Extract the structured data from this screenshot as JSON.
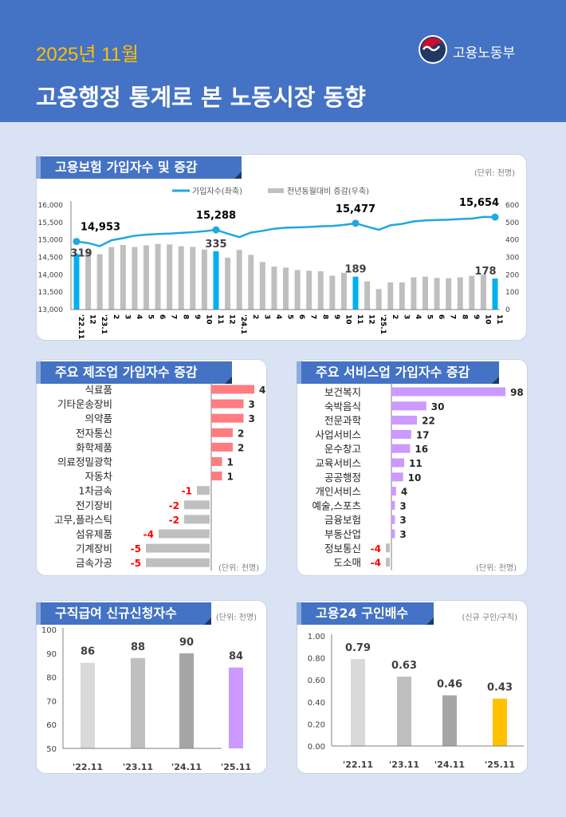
{
  "header": {
    "period": "2025년 11월",
    "title": "고용행정 통계로 본 노동시장 동향",
    "ministry": "고용노동부"
  },
  "colors": {
    "header": "#4472C4",
    "background": "#DAE3F3",
    "line": "#1FA8E0",
    "highlight_bar": "#00B0F0",
    "gray_bar": "#BFBFBF",
    "mfg_positive": "#FF7C80",
    "negative_label": "#FF0000",
    "service_positive": "#CC99FF",
    "claims_latest": "#CC99FF",
    "ratio_latest": "#FFC000"
  },
  "chart_data": [
    {
      "id": "insured",
      "type": "bar+line",
      "title": "고용보험 가입자수 및 증감",
      "unit": "(단위: 천명)",
      "legend": [
        "가입자수(좌축)",
        "전년동월대비 증감(우축)"
      ],
      "legend_position": "top",
      "categories": [
        "'22.11",
        "12",
        "'23.1",
        "2",
        "3",
        "4",
        "5",
        "6",
        "7",
        "8",
        "9",
        "10",
        "11",
        "12",
        "'24.1",
        "2",
        "3",
        "4",
        "5",
        "6",
        "7",
        "8",
        "9",
        "10",
        "11",
        "12",
        "'25.1",
        "2",
        "3",
        "4",
        "5",
        "6",
        "7",
        "8",
        "9",
        "10",
        "11"
      ],
      "left_axis": {
        "range": [
          13000,
          16000
        ],
        "ticks": [
          "13,000",
          "13,500",
          "14,000",
          "14,500",
          "15,000",
          "15,500",
          "16,000"
        ]
      },
      "right_axis": {
        "range": [
          0,
          600
        ],
        "ticks": [
          "0",
          "100",
          "200",
          "300",
          "400",
          "500",
          "600"
        ]
      },
      "line_series": {
        "name": "가입자수(좌축)",
        "values": [
          14953,
          14910,
          14820,
          14990,
          15050,
          15120,
          15150,
          15170,
          15180,
          15200,
          15220,
          15250,
          15288,
          15180,
          15080,
          15210,
          15260,
          15320,
          15350,
          15360,
          15370,
          15390,
          15400,
          15430,
          15477,
          15380,
          15290,
          15420,
          15460,
          15530,
          15560,
          15570,
          15580,
          15600,
          15610,
          15660,
          15654
        ]
      },
      "bar_series": {
        "name": "전년동월대비 증감(우축)",
        "values": [
          319,
          340,
          318,
          359,
          371,
          359,
          369,
          377,
          374,
          363,
          360,
          345,
          335,
          298,
          343,
          314,
          273,
          247,
          241,
          227,
          223,
          220,
          195,
          211,
          189,
          162,
          118,
          156,
          156,
          185,
          189,
          182,
          180,
          185,
          194,
          200,
          178
        ]
      },
      "line_labels": [
        {
          "index": 0,
          "text": "14,953"
        },
        {
          "index": 12,
          "text": "15,288"
        },
        {
          "index": 24,
          "text": "15,477"
        },
        {
          "index": 36,
          "text": "15,654"
        }
      ],
      "bar_labels": [
        {
          "index": 0,
          "text": "319"
        },
        {
          "index": 12,
          "text": "335"
        },
        {
          "index": 24,
          "text": "189"
        },
        {
          "index": 36,
          "text": "178"
        }
      ]
    },
    {
      "id": "manufacturing",
      "type": "bar",
      "orientation": "horizontal",
      "title": "주요 제조업 가입자수 증감",
      "unit": "(단위: 천명)",
      "categories": [
        "식료품",
        "기타운송장비",
        "의약품",
        "전자통신",
        "화학제품",
        "의료정밀광학",
        "자동차",
        "1차금속",
        "전기장비",
        "고무,플라스틱",
        "섬유제품",
        "기계장비",
        "금속가공"
      ],
      "values": [
        4,
        3,
        3,
        2,
        2,
        1,
        1,
        -1,
        -2,
        -2,
        -4,
        -5,
        -5
      ]
    },
    {
      "id": "services",
      "type": "bar",
      "orientation": "horizontal",
      "title": "주요 서비스업 가입자수 증감",
      "unit": "(단위: 천명)",
      "categories": [
        "보건복지",
        "숙박음식",
        "전문과학",
        "사업서비스",
        "운수창고",
        "교육서비스",
        "공공행정",
        "개인서비스",
        "예술,스포츠",
        "금융보험",
        "부동산업",
        "정보통신",
        "도소매"
      ],
      "values": [
        98,
        30,
        22,
        17,
        16,
        11,
        10,
        4,
        3,
        3,
        3,
        -4,
        -4
      ]
    },
    {
      "id": "claims",
      "type": "bar",
      "title": "구직급여 신규신청자수",
      "unit": "(단위: 천명)",
      "categories": [
        "'22.11",
        "'23.11",
        "'24.11",
        "'25.11"
      ],
      "values": [
        86,
        88,
        90,
        84
      ],
      "ylim": [
        50,
        100
      ],
      "ticks": [
        "50",
        "60",
        "70",
        "80",
        "90",
        "100"
      ]
    },
    {
      "id": "ratio",
      "type": "bar",
      "title": "고용24 구인배수",
      "unit": "(신규 구인/구직)",
      "categories": [
        "'22.11",
        "'23.11",
        "'24.11",
        "'25.11"
      ],
      "values": [
        0.79,
        0.63,
        0.46,
        0.43
      ],
      "ylim": [
        0,
        1
      ],
      "ticks": [
        "0.00",
        "0.20",
        "0.40",
        "0.60",
        "0.80",
        "1.00"
      ]
    }
  ]
}
